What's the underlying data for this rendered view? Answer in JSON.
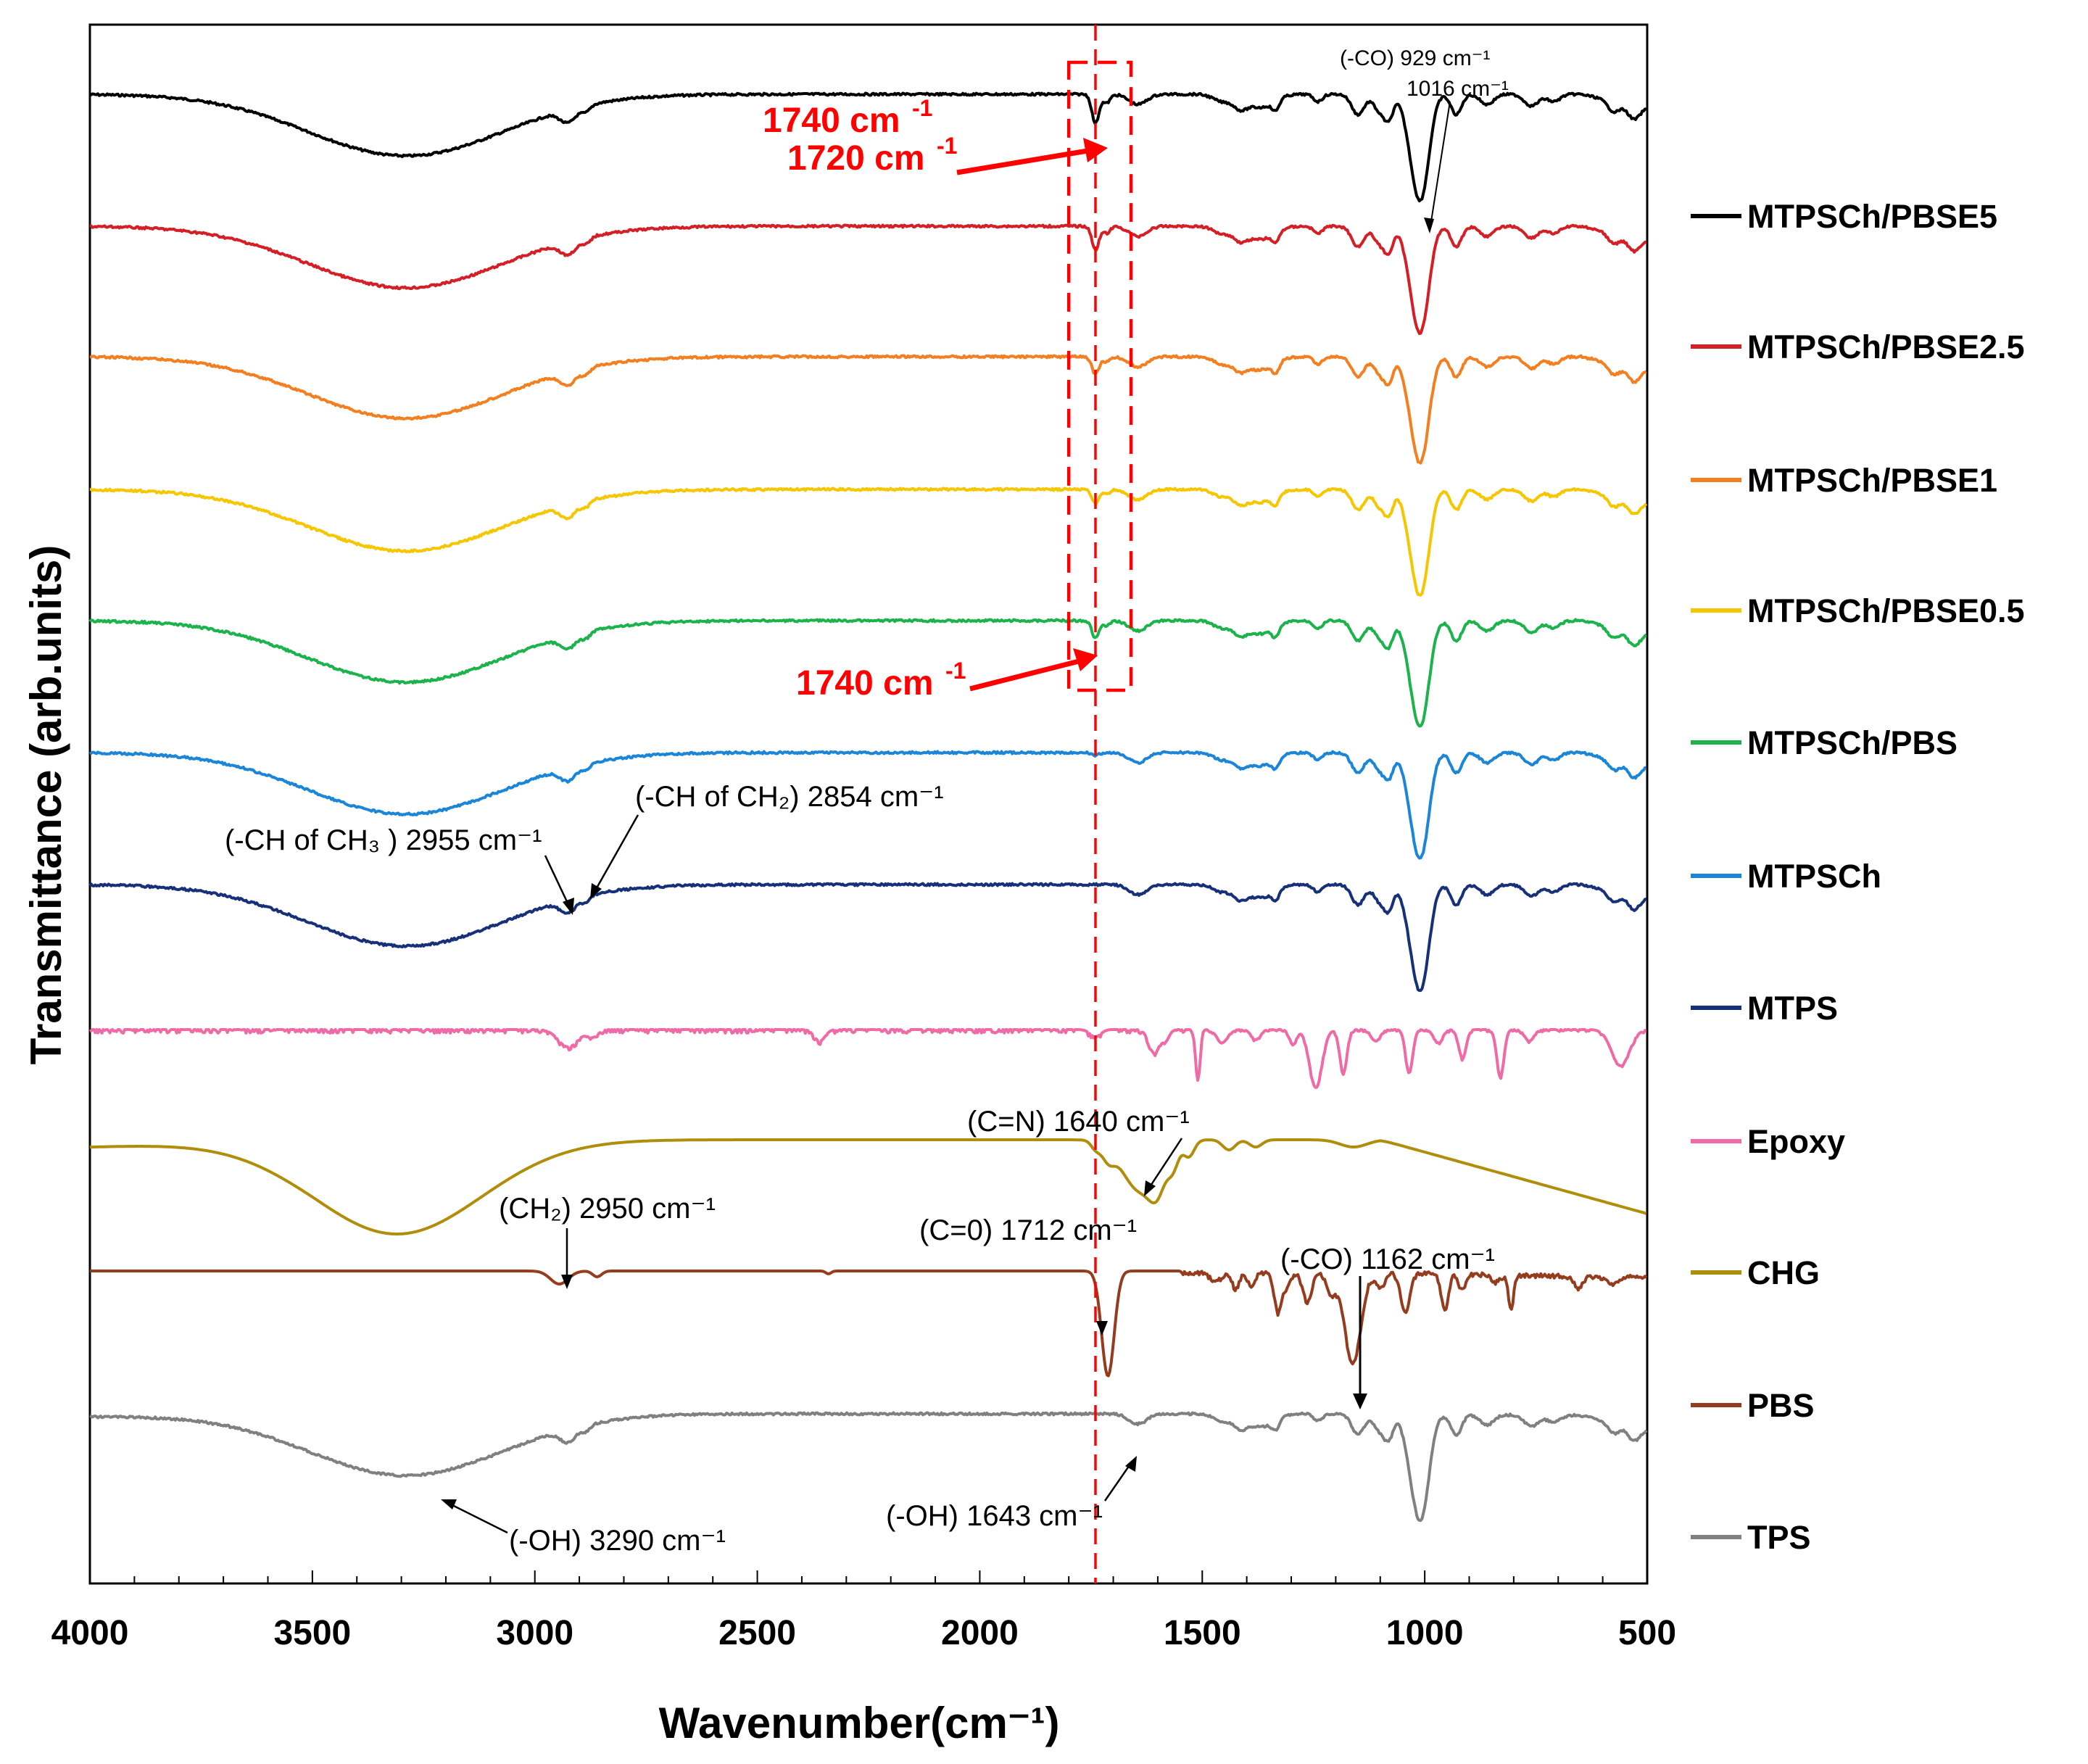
{
  "chart_data": {
    "type": "line",
    "title": "",
    "xlabel": "Wavenumber(cm⁻¹)",
    "ylabel": "Transmittance (arb.units)",
    "xlim": [
      4000,
      500
    ],
    "x_reversed": true,
    "x_ticks": [
      "4000",
      "3500",
      "3000",
      "2500",
      "2000",
      "1500",
      "1000",
      "500"
    ],
    "grid": false,
    "legend_placement": "right",
    "series": [
      {
        "name": "MTPSCh/PBSE5",
        "color": "#000000",
        "offset": 10,
        "scale": 1.0,
        "ester": 1.0,
        "edge": 0
      },
      {
        "name": "MTPSCh/PBSE2.5",
        "color": "#d41f26",
        "offset": 9,
        "scale": 1.0,
        "ester": 0.8,
        "edge": 0
      },
      {
        "name": "MTPSCh/PBSE1",
        "color": "#f47f20",
        "offset": 8,
        "scale": 1.0,
        "ester": 0.6,
        "edge": 0
      },
      {
        "name": "MTPSCh/PBSE0.5",
        "color": "#f6c700",
        "offset": 7,
        "scale": 1.0,
        "ester": 0.5,
        "edge": 0
      },
      {
        "name": "MTPSCh/PBS",
        "color": "#1db34c",
        "offset": 6,
        "scale": 1.0,
        "ester": 0.6,
        "edge": 0
      },
      {
        "name": "MTPSCh",
        "color": "#1b85d8",
        "offset": 5,
        "scale": 1.0,
        "ester": 0.1,
        "edge": 0
      },
      {
        "name": "MTPS",
        "color": "#16307a",
        "offset": 4,
        "scale": 1.0,
        "ester": 0.0,
        "edge": 0
      },
      {
        "name": "Epoxy",
        "color": "#f06aa6",
        "offset": 3,
        "scale": 1.0,
        "ester": 0.0,
        "edge": 0
      },
      {
        "name": "CHG",
        "color": "#b08d0a",
        "offset": 2,
        "scale": 1.0,
        "ester": 0.0,
        "edge": 0.9
      },
      {
        "name": "PBS",
        "color": "#963c1e",
        "offset": 1,
        "scale": 1.0,
        "ester": 0.0,
        "edge": 0.2
      },
      {
        "name": "TPS",
        "color": "#808080",
        "offset": 0,
        "scale": 1.0,
        "ester": 0.0,
        "edge": 0.1
      }
    ],
    "reference_line": {
      "x": 1740,
      "color": "#ff0000",
      "style": "dashed"
    },
    "highlight_box": {
      "x_from": 1800,
      "x_to": 1660,
      "color": "#ff0000",
      "style": "dashed"
    },
    "annotations": {
      "co_929_1016_a": "(-CO) 929 cm⁻¹",
      "co_929_1016_b": "1016 cm⁻¹",
      "red_1740_top": "1740 cm",
      "red_1720_top": "1720 cm",
      "red_1740_mid": "1740 cm",
      "red_sup": "-1",
      "ch3": "(-CH of CH₃ ) 2955 cm⁻¹",
      "ch2": "(-CH of CH₂) 2854 cm⁻¹",
      "cn": "(C=N) 1640 cm⁻¹",
      "ch2_2950": "(CH₂) 2950 cm⁻¹",
      "co_1712": "(C=0) 1712 cm⁻¹",
      "co_1162": "(-CO) 1162 cm⁻¹",
      "oh_3290": "(-OH) 3290 cm⁻¹",
      "oh_1643": "(-OH) 1643 cm⁻¹"
    }
  }
}
